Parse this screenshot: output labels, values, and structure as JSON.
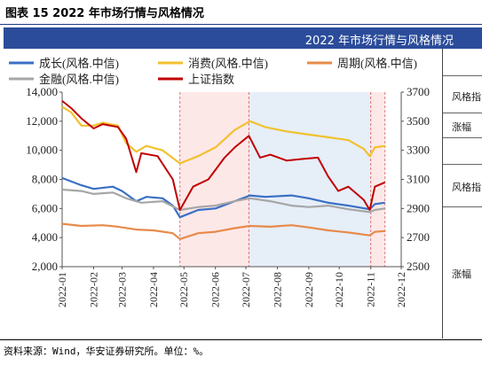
{
  "figure_title": "图表 15 2022 年市场行情与风格情况",
  "banner_title": "2022 年市场行情与风格情况",
  "side_table": {
    "cells": [
      "风格指",
      "涨幅",
      "风格指",
      "涨幅"
    ]
  },
  "source": "资料来源：Wind，华安证券研究所。单位：%。",
  "colors": {
    "growth": "#3a6fc4",
    "consumer": "#f2c12e",
    "cyclical": "#e88a4a",
    "financial": "#a6a6a6",
    "shanghai": "#c00000",
    "shade_pink": "#fde8e8",
    "shade_blue": "#e6eef8",
    "banner": "#2b4c9a"
  },
  "chart_data": {
    "type": "line",
    "x_ticks": [
      "2022-01",
      "2022-02",
      "2022-03",
      "2022-04",
      "2022-05",
      "2022-06",
      "2022-07",
      "2022-08",
      "2022-09",
      "2022-10",
      "2022-11",
      "2022-12"
    ],
    "x_range": [
      "2022-01-01",
      "2022-12-01"
    ],
    "y_left": {
      "ticks": [
        "2,000",
        "4,000",
        "6,000",
        "8,000",
        "10,000",
        "12,000",
        "14,000"
      ],
      "range": [
        2000,
        14000
      ]
    },
    "y_right": {
      "ticks": [
        "2500",
        "2700",
        "2900",
        "3100",
        "3300",
        "3500",
        "3700"
      ],
      "range": [
        2500,
        3700
      ]
    },
    "shaded_periods": [
      {
        "start": "2022-04-27",
        "end": "2022-07-04",
        "color": "pink"
      },
      {
        "start": "2022-07-04",
        "end": "2022-11-01",
        "color": "blue"
      },
      {
        "start": "2022-11-01",
        "end": "2022-11-15",
        "color": "pink"
      }
    ],
    "legend": [
      {
        "name": "成长(风格.中信)",
        "key": "growth"
      },
      {
        "name": "消费(风格.中信)",
        "key": "consumer"
      },
      {
        "name": "周期(风格.中信)",
        "key": "cyclical"
      },
      {
        "name": "金融(风格.中信)",
        "key": "financial"
      },
      {
        "name": "上证指数",
        "key": "shanghai"
      }
    ],
    "series": [
      {
        "name": "成长(风格.中信)",
        "key": "growth",
        "axis": "left",
        "points": [
          [
            "2022-01-01",
            8100
          ],
          [
            "2022-01-20",
            7600
          ],
          [
            "2022-02-01",
            7350
          ],
          [
            "2022-02-20",
            7500
          ],
          [
            "2022-03-01",
            7200
          ],
          [
            "2022-03-15",
            6500
          ],
          [
            "2022-03-25",
            6800
          ],
          [
            "2022-04-10",
            6700
          ],
          [
            "2022-04-20",
            6200
          ],
          [
            "2022-04-27",
            5400
          ],
          [
            "2022-05-15",
            5900
          ],
          [
            "2022-06-01",
            6000
          ],
          [
            "2022-06-20",
            6500
          ],
          [
            "2022-07-05",
            6900
          ],
          [
            "2022-07-20",
            6800
          ],
          [
            "2022-08-15",
            6900
          ],
          [
            "2022-09-01",
            6700
          ],
          [
            "2022-09-20",
            6400
          ],
          [
            "2022-10-10",
            6200
          ],
          [
            "2022-10-31",
            5950
          ],
          [
            "2022-11-05",
            6300
          ],
          [
            "2022-11-15",
            6400
          ]
        ]
      },
      {
        "name": "消费(风格.中信)",
        "key": "consumer",
        "axis": "left",
        "points": [
          [
            "2022-01-01",
            13000
          ],
          [
            "2022-01-10",
            12600
          ],
          [
            "2022-01-20",
            11700
          ],
          [
            "2022-02-01",
            11700
          ],
          [
            "2022-02-10",
            11900
          ],
          [
            "2022-02-25",
            11700
          ],
          [
            "2022-03-05",
            10500
          ],
          [
            "2022-03-15",
            9900
          ],
          [
            "2022-03-25",
            10300
          ],
          [
            "2022-04-10",
            10000
          ],
          [
            "2022-04-27",
            9100
          ],
          [
            "2022-05-15",
            9600
          ],
          [
            "2022-06-01",
            10200
          ],
          [
            "2022-06-20",
            11400
          ],
          [
            "2022-07-05",
            12000
          ],
          [
            "2022-07-20",
            11600
          ],
          [
            "2022-08-10",
            11300
          ],
          [
            "2022-08-30",
            11100
          ],
          [
            "2022-09-20",
            10900
          ],
          [
            "2022-10-10",
            10700
          ],
          [
            "2022-10-25",
            10100
          ],
          [
            "2022-10-31",
            9600
          ],
          [
            "2022-11-05",
            10200
          ],
          [
            "2022-11-15",
            10300
          ]
        ]
      },
      {
        "name": "周期(风格.中信)",
        "key": "cyclical",
        "axis": "left",
        "points": [
          [
            "2022-01-01",
            4950
          ],
          [
            "2022-01-20",
            4800
          ],
          [
            "2022-02-10",
            4850
          ],
          [
            "2022-02-25",
            4750
          ],
          [
            "2022-03-15",
            4550
          ],
          [
            "2022-04-01",
            4500
          ],
          [
            "2022-04-20",
            4300
          ],
          [
            "2022-04-27",
            3900
          ],
          [
            "2022-05-15",
            4300
          ],
          [
            "2022-06-01",
            4400
          ],
          [
            "2022-06-20",
            4650
          ],
          [
            "2022-07-05",
            4800
          ],
          [
            "2022-07-25",
            4750
          ],
          [
            "2022-08-15",
            4850
          ],
          [
            "2022-09-01",
            4700
          ],
          [
            "2022-09-20",
            4500
          ],
          [
            "2022-10-10",
            4350
          ],
          [
            "2022-10-31",
            4150
          ],
          [
            "2022-11-05",
            4400
          ],
          [
            "2022-11-15",
            4450
          ]
        ]
      },
      {
        "name": "金融(风格.中信)",
        "key": "financial",
        "axis": "left",
        "points": [
          [
            "2022-01-01",
            7300
          ],
          [
            "2022-01-20",
            7200
          ],
          [
            "2022-02-01",
            7000
          ],
          [
            "2022-02-20",
            7100
          ],
          [
            "2022-03-05",
            6700
          ],
          [
            "2022-03-20",
            6400
          ],
          [
            "2022-04-10",
            6500
          ],
          [
            "2022-04-27",
            5900
          ],
          [
            "2022-05-15",
            6100
          ],
          [
            "2022-06-01",
            6200
          ],
          [
            "2022-06-20",
            6500
          ],
          [
            "2022-07-05",
            6700
          ],
          [
            "2022-07-25",
            6500
          ],
          [
            "2022-08-15",
            6200
          ],
          [
            "2022-09-01",
            6100
          ],
          [
            "2022-09-20",
            6200
          ],
          [
            "2022-10-10",
            5950
          ],
          [
            "2022-10-31",
            5750
          ],
          [
            "2022-11-05",
            5900
          ],
          [
            "2022-11-15",
            6000
          ]
        ]
      },
      {
        "name": "上证指数",
        "key": "shanghai",
        "axis": "right",
        "points": [
          [
            "2022-01-01",
            3640
          ],
          [
            "2022-01-10",
            3590
          ],
          [
            "2022-01-20",
            3520
          ],
          [
            "2022-02-01",
            3450
          ],
          [
            "2022-02-10",
            3480
          ],
          [
            "2022-02-25",
            3460
          ],
          [
            "2022-03-05",
            3380
          ],
          [
            "2022-03-15",
            3150
          ],
          [
            "2022-03-20",
            3280
          ],
          [
            "2022-04-05",
            3260
          ],
          [
            "2022-04-20",
            3100
          ],
          [
            "2022-04-27",
            2890
          ],
          [
            "2022-05-10",
            3050
          ],
          [
            "2022-05-25",
            3100
          ],
          [
            "2022-06-10",
            3250
          ],
          [
            "2022-06-20",
            3320
          ],
          [
            "2022-07-04",
            3400
          ],
          [
            "2022-07-15",
            3250
          ],
          [
            "2022-07-25",
            3270
          ],
          [
            "2022-08-10",
            3230
          ],
          [
            "2022-08-25",
            3240
          ],
          [
            "2022-09-10",
            3250
          ],
          [
            "2022-09-20",
            3120
          ],
          [
            "2022-09-30",
            3020
          ],
          [
            "2022-10-10",
            3050
          ],
          [
            "2022-10-25",
            2960
          ],
          [
            "2022-10-31",
            2890
          ],
          [
            "2022-11-05",
            3050
          ],
          [
            "2022-11-15",
            3080
          ]
        ]
      }
    ]
  }
}
